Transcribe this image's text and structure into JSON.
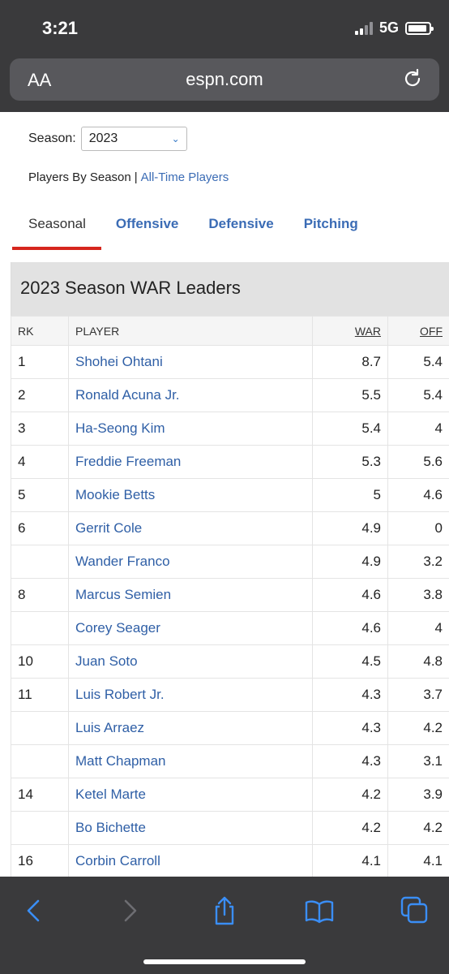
{
  "status_bar": {
    "time": "3:21",
    "network": "5G"
  },
  "browser": {
    "text_size_label": "AA",
    "url": "espn.com"
  },
  "season": {
    "label": "Season:",
    "selected": "2023"
  },
  "nav_links": {
    "current": "Players By Season",
    "separator": "|",
    "other": "All-Time Players"
  },
  "tabs": [
    {
      "label": "Seasonal",
      "active": true
    },
    {
      "label": "Offensive",
      "active": false
    },
    {
      "label": "Defensive",
      "active": false
    },
    {
      "label": "Pitching",
      "active": false
    }
  ],
  "table": {
    "title": "2023 Season WAR Leaders",
    "headers": {
      "rk": "RK",
      "player": "PLAYER",
      "war": "WAR",
      "off": "OFF"
    },
    "rows": [
      {
        "rk": "1",
        "player": "Shohei Ohtani",
        "war": "8.7",
        "off": "5.4"
      },
      {
        "rk": "2",
        "player": "Ronald Acuna Jr.",
        "war": "5.5",
        "off": "5.4"
      },
      {
        "rk": "3",
        "player": "Ha-Seong Kim",
        "war": "5.4",
        "off": "4"
      },
      {
        "rk": "4",
        "player": "Freddie Freeman",
        "war": "5.3",
        "off": "5.6"
      },
      {
        "rk": "5",
        "player": "Mookie Betts",
        "war": "5",
        "off": "4.6"
      },
      {
        "rk": "6",
        "player": "Gerrit Cole",
        "war": "4.9",
        "off": "0"
      },
      {
        "rk": "",
        "player": "Wander Franco",
        "war": "4.9",
        "off": "3.2"
      },
      {
        "rk": "8",
        "player": "Marcus Semien",
        "war": "4.6",
        "off": "3.8"
      },
      {
        "rk": "",
        "player": "Corey Seager",
        "war": "4.6",
        "off": "4"
      },
      {
        "rk": "10",
        "player": "Juan Soto",
        "war": "4.5",
        "off": "4.8"
      },
      {
        "rk": "11",
        "player": "Luis Robert Jr.",
        "war": "4.3",
        "off": "3.7"
      },
      {
        "rk": "",
        "player": "Luis Arraez",
        "war": "4.3",
        "off": "4.2"
      },
      {
        "rk": "",
        "player": "Matt Chapman",
        "war": "4.3",
        "off": "3.1"
      },
      {
        "rk": "14",
        "player": "Ketel Marte",
        "war": "4.2",
        "off": "3.9"
      },
      {
        "rk": "",
        "player": "Bo Bichette",
        "war": "4.2",
        "off": "4.2"
      },
      {
        "rk": "16",
        "player": "Corbin Carroll",
        "war": "4.1",
        "off": "4.1"
      }
    ]
  },
  "toolbar_icons": [
    "back-icon",
    "forward-icon",
    "share-icon",
    "bookmarks-icon",
    "tabs-icon"
  ],
  "colors": {
    "accent_red": "#d6261d",
    "link_blue": "#3b6cb5",
    "ios_blue": "#3a8ef6"
  }
}
